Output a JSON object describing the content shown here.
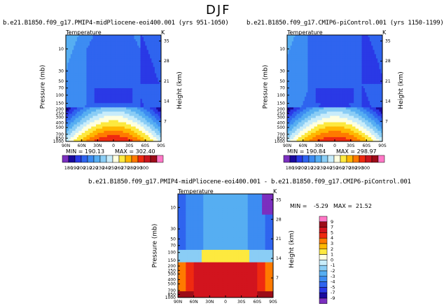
{
  "page": {
    "season": "DJF"
  },
  "chart_data": [
    {
      "type": "heatmap",
      "title": "b.e21.B1850.f09_g17.PMIP4-midPliocene-eoi400.001 (yrs 951-1050)",
      "subtitle": "Temperature",
      "units": "K",
      "xlabel": "",
      "ylabel": "Pressure (mb)",
      "y2label": "Height (km)",
      "x_ticks": [
        "90N",
        "60N",
        "30N",
        "0",
        "30S",
        "60S",
        "90S"
      ],
      "y_ticks": [
        "10",
        "30",
        "50",
        "70",
        "100",
        "150",
        "200",
        "250",
        "300",
        "400",
        "500",
        "700",
        "850",
        "1000"
      ],
      "y2_ticks": [
        "35",
        "28",
        "21",
        "14",
        "7"
      ],
      "ylim": [
        1000,
        5
      ],
      "stats": {
        "min": "MIN = 190.13",
        "max": "MAX = 302.40"
      },
      "colorbar_levels": [
        "180",
        "190",
        "200",
        "210",
        "220",
        "230",
        "240",
        "250",
        "260",
        "270",
        "280",
        "290",
        "300"
      ]
    },
    {
      "type": "heatmap",
      "title": "b.e21.B1850.f09_g17.CMIP6-piControl.001 (yrs 1150-1199)",
      "subtitle": "Temperature",
      "units": "K",
      "xlabel": "",
      "ylabel": "Pressure (mb)",
      "y2label": "Height (km)",
      "x_ticks": [
        "90N",
        "60N",
        "30N",
        "0",
        "30S",
        "60S",
        "90S"
      ],
      "y_ticks": [
        "10",
        "30",
        "50",
        "70",
        "100",
        "150",
        "200",
        "250",
        "300",
        "400",
        "500",
        "700",
        "850",
        "1000"
      ],
      "y2_ticks": [
        "35",
        "28",
        "21",
        "14",
        "7"
      ],
      "ylim": [
        1000,
        5
      ],
      "stats": {
        "min": "MIN = 190.84",
        "max": "MAX = 298.97"
      },
      "colorbar_levels": [
        "180",
        "190",
        "200",
        "210",
        "220",
        "230",
        "240",
        "250",
        "260",
        "270",
        "280",
        "290",
        "300"
      ]
    },
    {
      "type": "heatmap",
      "title": "b.e21.B1850.f09_g17.PMIP4-midPliocene-eoi400.001 - b.e21.B1850.f09_g17.CMIP6-piControl.001",
      "subtitle": "Temperature",
      "units": "K",
      "xlabel": "",
      "ylabel": "Pressure (mb)",
      "y2label": "Height (km)",
      "x_ticks": [
        "90N",
        "60N",
        "30N",
        "0",
        "30S",
        "60S",
        "90S"
      ],
      "y_ticks": [
        "10",
        "30",
        "50",
        "70",
        "100",
        "150",
        "200",
        "250",
        "300",
        "400",
        "500",
        "700",
        "850",
        "1000"
      ],
      "y2_ticks": [
        "35",
        "28",
        "21",
        "14",
        "7"
      ],
      "ylim": [
        1000,
        5
      ],
      "stats": {
        "min": "MIN =",
        "min_value": "-5.29",
        "max": "MAX =",
        "max_value": "21.52"
      },
      "colorbar_levels": [
        "9",
        "7",
        "5",
        "4",
        "3",
        "2",
        "1",
        "0",
        "-1",
        "-2",
        "-3",
        "-4",
        "-5",
        "-7",
        "-9"
      ]
    }
  ],
  "colors": {
    "abs_scale": [
      "#7b2fbf",
      "#1a0a9e",
      "#2a39e6",
      "#2f64ef",
      "#3d8cf2",
      "#56aef2",
      "#8acdf5",
      "#c8ecfa",
      "#ffffe0",
      "#fde93f",
      "#ffb700",
      "#ff7a00",
      "#ef2a10",
      "#c8141e",
      "#9c0c18",
      "#ff77c6"
    ],
    "diff_scale": [
      "#ff77c6",
      "#9c0c18",
      "#d2141e",
      "#ef2a10",
      "#ff7a00",
      "#ffb700",
      "#fde93f",
      "#ffffe0",
      "#c8ecfa",
      "#8acdf5",
      "#56aef2",
      "#3d8cf2",
      "#2f64ef",
      "#2a39e6",
      "#1a0a9e",
      "#7b2fbf"
    ]
  }
}
